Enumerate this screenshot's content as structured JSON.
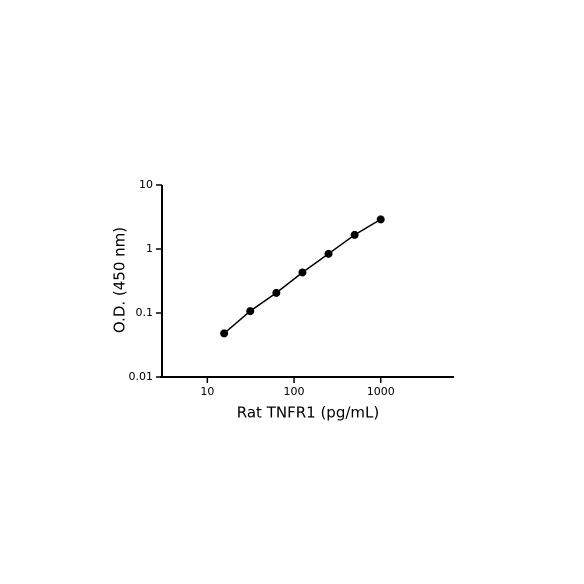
{
  "chart_data": {
    "type": "line",
    "x_label": "Rat TNFR1 (pg/mL)",
    "y_label": "O.D. (450 nm)",
    "x": [
      15.625,
      31.25,
      62.5,
      125,
      250,
      500,
      1000
    ],
    "series": [
      {
        "values": [
          0.048,
          0.107,
          0.206,
          0.43,
          0.84,
          1.66,
          2.9
        ],
        "color": "#000000"
      }
    ],
    "xlim": [
      3,
      7000
    ],
    "ylim": [
      0.01,
      10
    ],
    "xticks": [
      10,
      100,
      1000
    ],
    "yticks": [
      0.01,
      0.1,
      1,
      10
    ],
    "xscale": "log",
    "yscale": "log",
    "grid": false,
    "markers": true
  }
}
